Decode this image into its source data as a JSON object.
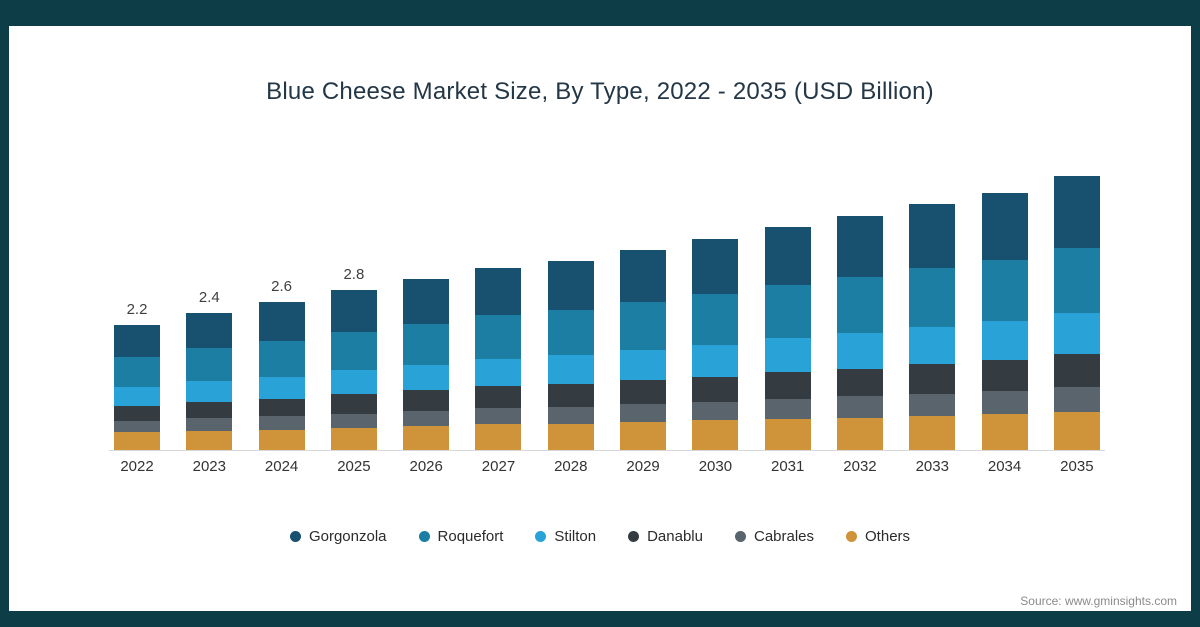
{
  "page": {
    "frame_color": "#0d3d47",
    "source": "Source: www.gminsights.com"
  },
  "chart_data": {
    "type": "bar",
    "stacked": true,
    "title": "Blue Cheese Market Size, By Type, 2022 - 2035 (USD Billion)",
    "unit": "USD Billion",
    "ylim": [
      0,
      5
    ],
    "grid": false,
    "legend_position": "bottom",
    "categories": [
      "2022",
      "2023",
      "2024",
      "2025",
      "2026",
      "2027",
      "2028",
      "2029",
      "2030",
      "2031",
      "2032",
      "2033",
      "2034",
      "2035"
    ],
    "bar_labels": [
      "2.2",
      "2.4",
      "2.6",
      "2.8",
      "",
      "",
      "",
      "",
      "",
      "",
      "",
      "",
      "",
      ""
    ],
    "totals": [
      2.2,
      2.4,
      2.6,
      2.8,
      3.0,
      3.2,
      3.3,
      3.5,
      3.7,
      3.9,
      4.1,
      4.3,
      4.5,
      4.8
    ],
    "series": [
      {
        "name": "Gorgonzola",
        "color": "#17516f",
        "values": [
          0.57,
          0.62,
          0.68,
          0.73,
          0.78,
          0.83,
          0.86,
          0.91,
          0.96,
          1.01,
          1.07,
          1.12,
          1.17,
          1.25
        ]
      },
      {
        "name": "Roquefort",
        "color": "#1b7ea2",
        "values": [
          0.53,
          0.58,
          0.62,
          0.67,
          0.72,
          0.77,
          0.79,
          0.84,
          0.89,
          0.94,
          0.98,
          1.03,
          1.08,
          1.15
        ]
      },
      {
        "name": "Stilton",
        "color": "#29a3d7",
        "values": [
          0.33,
          0.36,
          0.39,
          0.42,
          0.45,
          0.48,
          0.5,
          0.53,
          0.56,
          0.59,
          0.62,
          0.65,
          0.68,
          0.72
        ]
      },
      {
        "name": "Danablu",
        "color": "#343b41",
        "values": [
          0.26,
          0.29,
          0.31,
          0.34,
          0.36,
          0.38,
          0.4,
          0.42,
          0.44,
          0.47,
          0.49,
          0.52,
          0.54,
          0.58
        ]
      },
      {
        "name": "Cabrales",
        "color": "#5a646d",
        "values": [
          0.2,
          0.22,
          0.23,
          0.25,
          0.27,
          0.29,
          0.3,
          0.32,
          0.33,
          0.35,
          0.37,
          0.39,
          0.41,
          0.43
        ]
      },
      {
        "name": "Others",
        "color": "#cf9339",
        "values": [
          0.31,
          0.34,
          0.36,
          0.39,
          0.42,
          0.45,
          0.46,
          0.49,
          0.52,
          0.55,
          0.57,
          0.6,
          0.63,
          0.67
        ]
      }
    ]
  }
}
